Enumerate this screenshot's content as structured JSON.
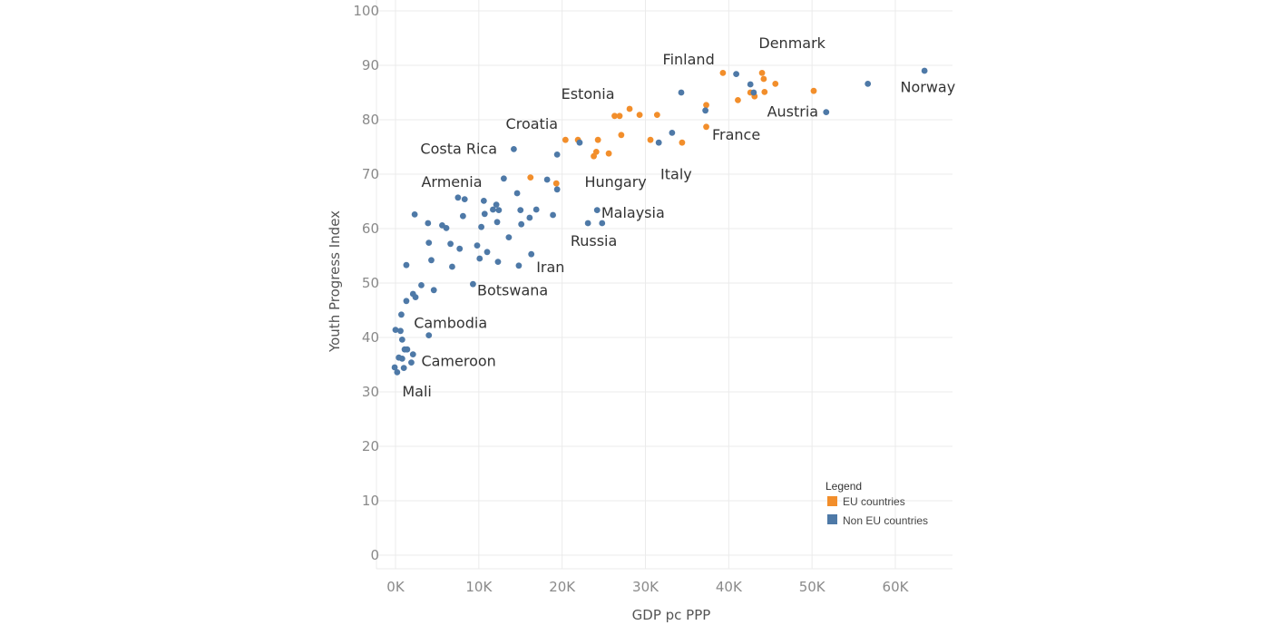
{
  "chart_data": {
    "type": "scatter",
    "title": "",
    "xlabel": "GDP pc PPP",
    "ylabel": "Youth Progress Index",
    "xlim": [
      -2000,
      66000
    ],
    "ylim": [
      -2,
      101
    ],
    "x_ticks": [
      0,
      10000,
      20000,
      30000,
      40000,
      50000,
      60000
    ],
    "x_tick_labels": [
      "0K",
      "10K",
      "20K",
      "30K",
      "40K",
      "50K",
      "60K"
    ],
    "y_ticks": [
      0,
      10,
      20,
      30,
      40,
      50,
      60,
      70,
      80,
      90,
      100
    ],
    "y_tick_labels": [
      "0",
      "10",
      "20",
      "30",
      "40",
      "50",
      "60",
      "70",
      "80",
      "90",
      "100"
    ],
    "grid": true,
    "legend": {
      "title": "Legend",
      "placement": "bottom-right",
      "entries": [
        "EU countries",
        "Non EU countries"
      ]
    },
    "colors": {
      "eu": "#f28e2b",
      "non_eu": "#4e79a7"
    },
    "series": [
      {
        "name": "EU countries",
        "points": [
          [
            39300,
            88.6
          ],
          [
            44000,
            88.6
          ],
          [
            44200,
            87.5
          ],
          [
            45600,
            86.6
          ],
          [
            42600,
            85.0
          ],
          [
            43100,
            84.3
          ],
          [
            44300,
            85.1
          ],
          [
            50200,
            85.3
          ],
          [
            37300,
            82.7
          ],
          [
            41100,
            83.6
          ],
          [
            37300,
            78.7
          ],
          [
            28100,
            82.0
          ],
          [
            26300,
            80.7
          ],
          [
            26900,
            80.7
          ],
          [
            29300,
            80.9
          ],
          [
            31400,
            80.9
          ],
          [
            20400,
            76.3
          ],
          [
            21900,
            76.3
          ],
          [
            24300,
            76.3
          ],
          [
            27100,
            77.2
          ],
          [
            30600,
            76.3
          ],
          [
            34400,
            75.8
          ],
          [
            24100,
            74.1
          ],
          [
            25600,
            73.8
          ],
          [
            23800,
            73.3
          ],
          [
            16200,
            69.4
          ],
          [
            19300,
            68.3
          ]
        ]
      },
      {
        "name": "Non EU countries",
        "points": [
          [
            63500,
            89.0
          ],
          [
            56700,
            86.6
          ],
          [
            51700,
            81.4
          ],
          [
            40900,
            88.4
          ],
          [
            42600,
            86.5
          ],
          [
            43000,
            85.0
          ],
          [
            34300,
            85.0
          ],
          [
            37200,
            81.7
          ],
          [
            33200,
            77.6
          ],
          [
            31600,
            75.8
          ],
          [
            22100,
            75.8
          ],
          [
            14200,
            74.6
          ],
          [
            19400,
            73.6
          ],
          [
            13000,
            69.2
          ],
          [
            18200,
            69.0
          ],
          [
            19400,
            67.2
          ],
          [
            7500,
            65.7
          ],
          [
            8300,
            65.4
          ],
          [
            14600,
            66.5
          ],
          [
            10600,
            65.1
          ],
          [
            12100,
            64.4
          ],
          [
            11700,
            63.5
          ],
          [
            12400,
            63.4
          ],
          [
            15000,
            63.4
          ],
          [
            16900,
            63.5
          ],
          [
            8100,
            62.3
          ],
          [
            10700,
            62.7
          ],
          [
            2300,
            62.6
          ],
          [
            16100,
            62.0
          ],
          [
            18900,
            62.5
          ],
          [
            24200,
            63.4
          ],
          [
            23100,
            61.0
          ],
          [
            24800,
            61.0
          ],
          [
            3900,
            61.0
          ],
          [
            12200,
            61.2
          ],
          [
            15100,
            60.8
          ],
          [
            5600,
            60.6
          ],
          [
            6100,
            60.1
          ],
          [
            10300,
            60.3
          ],
          [
            13600,
            58.4
          ],
          [
            4000,
            57.4
          ],
          [
            6600,
            57.2
          ],
          [
            7700,
            56.3
          ],
          [
            9800,
            56.9
          ],
          [
            11000,
            55.7
          ],
          [
            16300,
            55.3
          ],
          [
            4300,
            54.2
          ],
          [
            10100,
            54.5
          ],
          [
            12300,
            53.9
          ],
          [
            14800,
            53.2
          ],
          [
            1300,
            53.3
          ],
          [
            6800,
            53.0
          ],
          [
            9300,
            49.8
          ],
          [
            3100,
            49.6
          ],
          [
            4600,
            48.7
          ],
          [
            2100,
            48.0
          ],
          [
            2400,
            47.4
          ],
          [
            1300,
            46.7
          ],
          [
            700,
            44.2
          ],
          [
            4000,
            40.4
          ],
          [
            0,
            41.4
          ],
          [
            600,
            41.2
          ],
          [
            800,
            39.6
          ],
          [
            1100,
            37.8
          ],
          [
            1400,
            37.8
          ],
          [
            2100,
            36.9
          ],
          [
            400,
            36.3
          ],
          [
            800,
            36.1
          ],
          [
            1900,
            35.4
          ],
          [
            -100,
            34.5
          ],
          [
            1000,
            34.4
          ],
          [
            200,
            33.6
          ]
        ]
      }
    ],
    "annotations": [
      {
        "text": "Denmark",
        "x": 43600,
        "y": 94,
        "anchor": "start"
      },
      {
        "text": "Finland",
        "x": 38300,
        "y": 91,
        "anchor": "end"
      },
      {
        "text": "Norway",
        "x": 60600,
        "y": 85.9,
        "anchor": "start"
      },
      {
        "text": "Estonia",
        "x": 26300,
        "y": 84.7,
        "anchor": "end"
      },
      {
        "text": "Austria",
        "x": 44600,
        "y": 81.4,
        "anchor": "start"
      },
      {
        "text": "Croatia",
        "x": 19500,
        "y": 79.2,
        "anchor": "end"
      },
      {
        "text": "France",
        "x": 38000,
        "y": 77.2,
        "anchor": "start"
      },
      {
        "text": "Costa Rica",
        "x": 12200,
        "y": 74.6,
        "anchor": "end"
      },
      {
        "text": "Italy",
        "x": 31800,
        "y": 69.9,
        "anchor": "start"
      },
      {
        "text": "Hungary",
        "x": 22700,
        "y": 68.5,
        "anchor": "start"
      },
      {
        "text": "Armenia",
        "x": 3100,
        "y": 68.5,
        "anchor": "start"
      },
      {
        "text": "Malaysia",
        "x": 24700,
        "y": 62.8,
        "anchor": "start"
      },
      {
        "text": "Russia",
        "x": 21000,
        "y": 57.7,
        "anchor": "start"
      },
      {
        "text": "Iran",
        "x": 16900,
        "y": 52.8,
        "anchor": "start"
      },
      {
        "text": "Botswana",
        "x": 9800,
        "y": 48.6,
        "anchor": "start"
      },
      {
        "text": "Cambodia",
        "x": 2200,
        "y": 42.6,
        "anchor": "start"
      },
      {
        "text": "Cameroon",
        "x": 3100,
        "y": 35.6,
        "anchor": "start"
      },
      {
        "text": "Mali",
        "x": 800,
        "y": 30.0,
        "anchor": "start"
      }
    ]
  }
}
